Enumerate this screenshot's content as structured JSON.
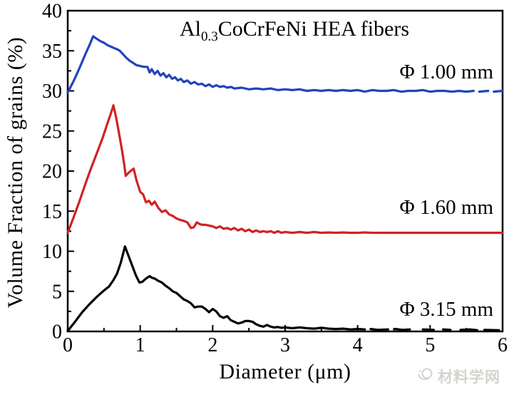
{
  "figure": {
    "title": {
      "prefix": "Al",
      "subscript": "0.3",
      "suffix": "CoCrFeNi HEA fibers"
    }
  },
  "watermark": {
    "text": "材料学网",
    "logo": "swirl-logo-icon",
    "color": "#d6d3cf"
  },
  "chart_data": {
    "type": "line",
    "title": "Al0.3CoCrFeNi HEA fibers",
    "xlabel": "Diameter (μm)",
    "ylabel": "Volume Fraction of grains (%)",
    "xlim": [
      0,
      6
    ],
    "ylim": [
      0,
      40
    ],
    "x_major_ticks": [
      0,
      1,
      2,
      3,
      4,
      5,
      6
    ],
    "x_minor_step": 0.5,
    "y_major_ticks": [
      0,
      5,
      10,
      15,
      20,
      25,
      30,
      35,
      40
    ],
    "y_minor_step": 2.5,
    "grid": false,
    "tick_direction": "in",
    "legend_position": "right-inline-labels",
    "axis_color": "#000000",
    "series": [
      {
        "name": "Φ 1.00 mm",
        "color": "#2343bd",
        "baseline_offset": 30,
        "peak": {
          "x": 0.35,
          "y": 36.8
        },
        "segments": [
          [
            [
              0,
              29.8
            ],
            [
              0.08,
              31.2
            ],
            [
              0.16,
              32.8
            ],
            [
              0.24,
              34.5
            ],
            [
              0.3,
              35.7
            ],
            [
              0.35,
              36.8
            ],
            [
              0.4,
              36.5
            ],
            [
              0.45,
              36.2
            ],
            [
              0.5,
              36.0
            ],
            [
              0.55,
              35.7
            ],
            [
              0.6,
              35.5
            ],
            [
              0.65,
              35.3
            ],
            [
              0.68,
              35.2
            ],
            [
              0.72,
              35.0
            ],
            [
              0.76,
              34.6
            ],
            [
              0.8,
              34.2
            ],
            [
              0.85,
              33.8
            ],
            [
              0.9,
              33.5
            ],
            [
              0.95,
              33.2
            ],
            [
              1.0,
              33.1
            ],
            [
              1.05,
              33.0
            ],
            [
              1.1,
              33.0
            ],
            [
              1.13,
              32.3
            ],
            [
              1.16,
              32.7
            ],
            [
              1.2,
              32.1
            ],
            [
              1.24,
              32.5
            ],
            [
              1.28,
              31.9
            ],
            [
              1.32,
              32.2
            ],
            [
              1.36,
              31.7
            ],
            [
              1.4,
              32.0
            ],
            [
              1.44,
              31.5
            ],
            [
              1.48,
              31.7
            ],
            [
              1.52,
              31.3
            ],
            [
              1.56,
              31.5
            ],
            [
              1.6,
              31.1
            ],
            [
              1.65,
              31.3
            ],
            [
              1.7,
              30.9
            ],
            [
              1.75,
              31.1
            ],
            [
              1.8,
              30.8
            ],
            [
              1.85,
              30.9
            ],
            [
              1.9,
              30.6
            ],
            [
              1.95,
              30.8
            ],
            [
              2.0,
              30.5
            ],
            [
              2.05,
              30.7
            ],
            [
              2.1,
              30.5
            ],
            [
              2.15,
              30.6
            ],
            [
              2.2,
              30.4
            ],
            [
              2.25,
              30.5
            ],
            [
              2.3,
              30.3
            ],
            [
              2.4,
              30.4
            ],
            [
              2.5,
              30.2
            ],
            [
              2.6,
              30.3
            ],
            [
              2.7,
              30.2
            ],
            [
              2.8,
              30.3
            ],
            [
              2.9,
              30.1
            ],
            [
              3.0,
              30.2
            ],
            [
              3.1,
              30.1
            ],
            [
              3.2,
              30.2
            ],
            [
              3.3,
              30.0
            ],
            [
              3.4,
              30.1
            ],
            [
              3.5,
              30.0
            ],
            [
              3.6,
              30.1
            ],
            [
              3.7,
              30.0
            ],
            [
              3.8,
              30.1
            ],
            [
              3.9,
              30.0
            ],
            [
              4.0,
              30.1
            ],
            [
              4.1,
              29.9
            ],
            [
              4.2,
              30.1
            ],
            [
              4.3,
              30.0
            ],
            [
              4.4,
              30.0
            ],
            [
              4.5,
              30.1
            ],
            [
              4.6,
              29.9
            ],
            [
              4.7,
              30.0
            ],
            [
              4.8,
              30.0
            ],
            [
              4.9,
              30.1
            ],
            [
              5.0,
              29.9
            ],
            [
              5.1,
              30.0
            ],
            [
              5.2,
              30.0
            ],
            [
              5.3,
              29.9
            ],
            [
              5.4,
              30.0
            ],
            [
              5.5,
              29.9
            ],
            [
              5.6,
              30.0
            ]
          ],
          [
            [
              5.68,
              29.9
            ],
            [
              5.8,
              30.0
            ]
          ],
          [
            [
              5.88,
              29.9
            ],
            [
              6.0,
              30.0
            ]
          ]
        ]
      },
      {
        "name": "Φ 1.60 mm",
        "color": "#d12224",
        "baseline_offset": 12.3,
        "peak": {
          "x": 0.63,
          "y": 28.2
        },
        "segments": [
          [
            [
              0,
              12.3
            ],
            [
              0.08,
              14.2
            ],
            [
              0.16,
              16.2
            ],
            [
              0.24,
              18.3
            ],
            [
              0.32,
              20.3
            ],
            [
              0.4,
              22.2
            ],
            [
              0.48,
              24.1
            ],
            [
              0.55,
              26.0
            ],
            [
              0.6,
              27.3
            ],
            [
              0.63,
              28.2
            ],
            [
              0.67,
              26.6
            ],
            [
              0.71,
              24.6
            ],
            [
              0.75,
              22.5
            ],
            [
              0.78,
              20.8
            ],
            [
              0.8,
              19.4
            ],
            [
              0.84,
              19.8
            ],
            [
              0.88,
              20.1
            ],
            [
              0.91,
              20.3
            ],
            [
              0.95,
              18.8
            ],
            [
              1.0,
              17.4
            ],
            [
              1.04,
              17.1
            ],
            [
              1.08,
              16.1
            ],
            [
              1.12,
              16.3
            ],
            [
              1.16,
              15.8
            ],
            [
              1.2,
              16.2
            ],
            [
              1.25,
              15.4
            ],
            [
              1.3,
              14.9
            ],
            [
              1.35,
              15.1
            ],
            [
              1.4,
              14.6
            ],
            [
              1.45,
              14.4
            ],
            [
              1.5,
              14.1
            ],
            [
              1.55,
              13.9
            ],
            [
              1.6,
              13.8
            ],
            [
              1.65,
              13.6
            ],
            [
              1.7,
              12.9
            ],
            [
              1.74,
              13.0
            ],
            [
              1.78,
              13.6
            ],
            [
              1.82,
              13.4
            ],
            [
              1.86,
              13.3
            ],
            [
              1.9,
              13.3
            ],
            [
              1.95,
              13.2
            ],
            [
              2.0,
              13.1
            ],
            [
              2.05,
              12.9
            ],
            [
              2.1,
              13.1
            ],
            [
              2.15,
              12.8
            ],
            [
              2.2,
              12.9
            ],
            [
              2.25,
              12.7
            ],
            [
              2.3,
              12.9
            ],
            [
              2.35,
              12.6
            ],
            [
              2.4,
              12.8
            ],
            [
              2.45,
              12.5
            ],
            [
              2.5,
              12.7
            ],
            [
              2.55,
              12.4
            ],
            [
              2.6,
              12.6
            ],
            [
              2.65,
              12.4
            ],
            [
              2.7,
              12.5
            ],
            [
              2.75,
              12.4
            ],
            [
              2.8,
              12.5
            ],
            [
              2.85,
              12.3
            ],
            [
              2.9,
              12.5
            ],
            [
              2.95,
              12.3
            ],
            [
              3.0,
              12.4
            ],
            [
              3.1,
              12.3
            ],
            [
              3.2,
              12.4
            ],
            [
              3.3,
              12.3
            ],
            [
              3.4,
              12.4
            ],
            [
              3.5,
              12.3
            ],
            [
              3.6,
              12.35
            ],
            [
              3.7,
              12.3
            ],
            [
              3.8,
              12.35
            ],
            [
              3.9,
              12.3
            ],
            [
              4.0,
              12.3
            ],
            [
              4.1,
              12.35
            ],
            [
              4.2,
              12.3
            ],
            [
              4.35,
              12.3
            ],
            [
              4.5,
              12.3
            ],
            [
              4.65,
              12.3
            ],
            [
              4.8,
              12.3
            ],
            [
              5.0,
              12.3
            ],
            [
              5.2,
              12.3
            ],
            [
              5.4,
              12.3
            ],
            [
              5.6,
              12.3
            ],
            [
              5.8,
              12.3
            ],
            [
              6.0,
              12.3
            ]
          ]
        ]
      },
      {
        "name": "Φ 3.15 mm",
        "color": "#000000",
        "baseline_offset": 0,
        "peak": {
          "x": 0.79,
          "y": 10.6
        },
        "segments": [
          [
            [
              0,
              0.05
            ],
            [
              0.1,
              1.2
            ],
            [
              0.2,
              2.4
            ],
            [
              0.3,
              3.4
            ],
            [
              0.4,
              4.3
            ],
            [
              0.5,
              5.1
            ],
            [
              0.57,
              5.6
            ],
            [
              0.63,
              6.4
            ],
            [
              0.68,
              7.2
            ],
            [
              0.73,
              8.5
            ],
            [
              0.79,
              10.6
            ],
            [
              0.84,
              9.4
            ],
            [
              0.89,
              8.2
            ],
            [
              0.94,
              7.0
            ],
            [
              0.99,
              6.1
            ],
            [
              1.03,
              6.2
            ],
            [
              1.08,
              6.6
            ],
            [
              1.13,
              6.9
            ],
            [
              1.16,
              6.7
            ],
            [
              1.2,
              6.6
            ],
            [
              1.25,
              6.3
            ],
            [
              1.3,
              6.1
            ],
            [
              1.35,
              5.7
            ],
            [
              1.4,
              5.4
            ],
            [
              1.45,
              5.0
            ],
            [
              1.5,
              4.8
            ],
            [
              1.55,
              4.4
            ],
            [
              1.6,
              4.0
            ],
            [
              1.65,
              3.8
            ],
            [
              1.7,
              3.5
            ],
            [
              1.75,
              3.0
            ],
            [
              1.8,
              3.1
            ],
            [
              1.85,
              3.1
            ],
            [
              1.9,
              2.8
            ],
            [
              1.95,
              2.4
            ],
            [
              2.0,
              2.8
            ],
            [
              2.05,
              2.5
            ],
            [
              2.1,
              1.9
            ],
            [
              2.15,
              1.7
            ],
            [
              2.2,
              1.9
            ],
            [
              2.25,
              1.4
            ],
            [
              2.3,
              1.2
            ],
            [
              2.35,
              1.0
            ],
            [
              2.4,
              1.1
            ],
            [
              2.45,
              1.3
            ],
            [
              2.5,
              1.3
            ],
            [
              2.55,
              1.2
            ],
            [
              2.6,
              0.9
            ],
            [
              2.65,
              0.7
            ],
            [
              2.7,
              0.6
            ],
            [
              2.75,
              0.8
            ],
            [
              2.8,
              0.6
            ],
            [
              2.85,
              0.5
            ],
            [
              2.9,
              0.55
            ],
            [
              2.95,
              0.45
            ],
            [
              3.0,
              0.5
            ],
            [
              3.1,
              0.4
            ],
            [
              3.2,
              0.5
            ],
            [
              3.3,
              0.4
            ],
            [
              3.4,
              0.35
            ],
            [
              3.5,
              0.45
            ],
            [
              3.6,
              0.35
            ],
            [
              3.7,
              0.3
            ],
            [
              3.8,
              0.35
            ],
            [
              3.9,
              0.25
            ],
            [
              4.0,
              0.3
            ],
            [
              4.1,
              0.25
            ]
          ],
          [
            [
              4.18,
              0.3
            ],
            [
              4.28,
              0.2
            ],
            [
              4.42,
              0.25
            ]
          ],
          [
            [
              4.52,
              0.3
            ],
            [
              4.62,
              0.2
            ],
            [
              4.72,
              0.25
            ]
          ],
          [
            [
              4.9,
              0.25
            ],
            [
              5.05,
              0.2
            ]
          ],
          [
            [
              5.18,
              0.25
            ],
            [
              5.28,
              0.2
            ]
          ],
          [
            [
              5.42,
              0.2
            ],
            [
              5.55,
              0.25
            ],
            [
              5.65,
              0.15
            ]
          ],
          [
            [
              5.75,
              0.2
            ],
            [
              5.95,
              0.15
            ]
          ]
        ]
      }
    ]
  }
}
